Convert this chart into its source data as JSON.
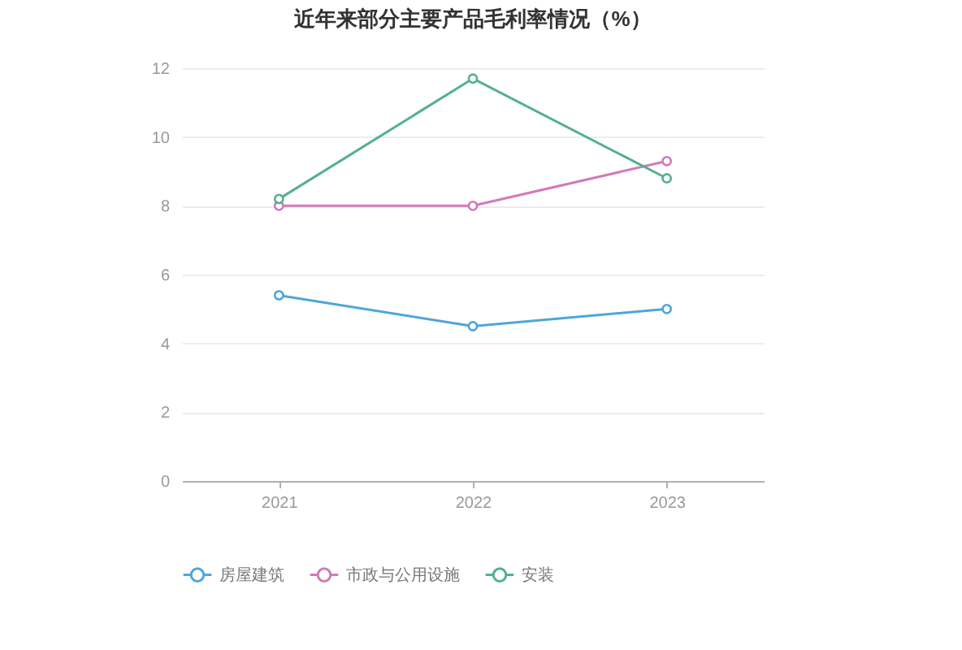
{
  "chart_data": {
    "type": "line",
    "title": "近年来部分主要产品毛利率情况（%）",
    "categories": [
      "2021",
      "2022",
      "2023"
    ],
    "series": [
      {
        "name": "房屋建筑",
        "color": "#4ea6d9",
        "values": [
          5.4,
          4.5,
          5.0
        ]
      },
      {
        "name": "市政与公用设施",
        "color": "#d27ab9",
        "values": [
          8.0,
          8.0,
          9.3
        ]
      },
      {
        "name": "安装",
        "color": "#55b08f",
        "values": [
          8.2,
          11.7,
          8.8
        ]
      }
    ],
    "ylim": [
      0,
      12
    ],
    "yticks": [
      0,
      2,
      4,
      6,
      8,
      10,
      12
    ],
    "grid": "y",
    "legend": "bottom",
    "marker": "circle",
    "line_style": "solid"
  }
}
